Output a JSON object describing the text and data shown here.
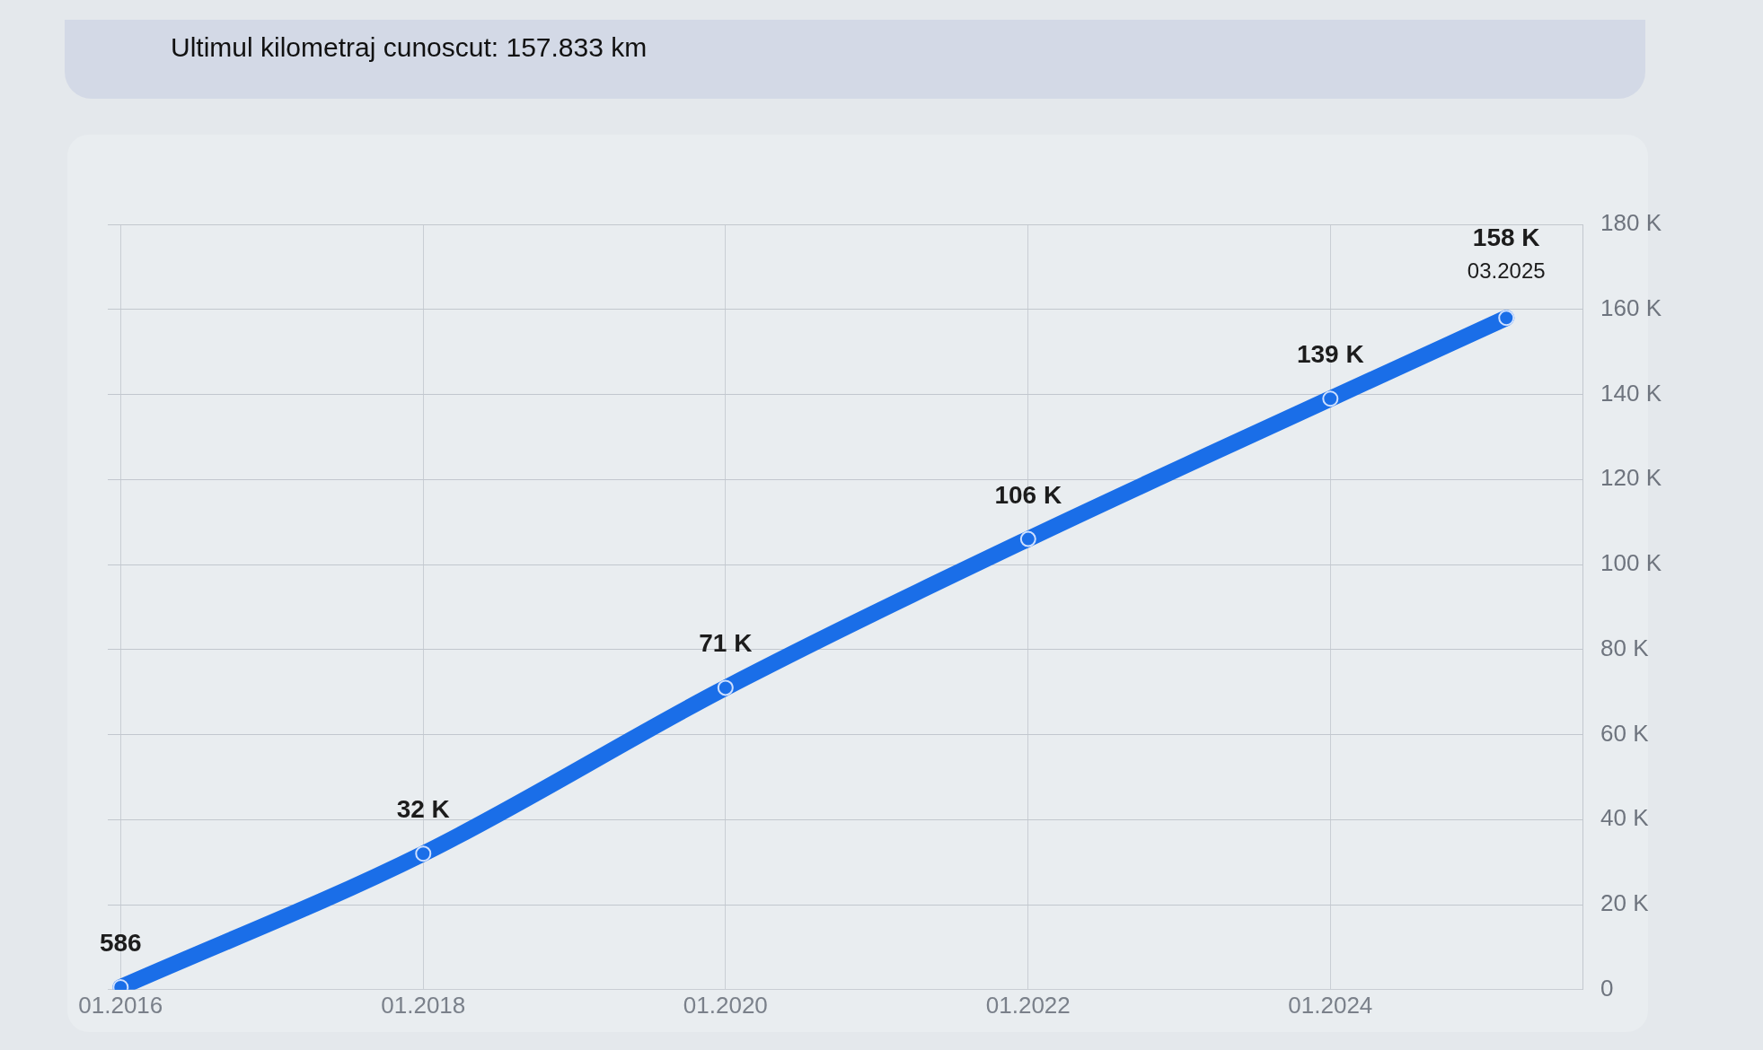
{
  "chart_data": {
    "type": "line",
    "title": "Ultimul kilometraj cunoscut: 157.833 km",
    "x": [
      "2016-01",
      "2018-01",
      "2020-01",
      "2022-01",
      "2024-01",
      "2025-03"
    ],
    "series": [
      {
        "color": "#1a6ee8",
        "values": [
          586,
          32000,
          71000,
          106000,
          139000,
          158000
        ],
        "value_labels": [
          "586",
          "32 K",
          "71 K",
          "106 K",
          "139 K",
          "158 K"
        ]
      }
    ],
    "xlim": [
      "2015-12",
      "2025-09"
    ],
    "xticks": [
      {
        "value": "2016-01",
        "label": "01.2016"
      },
      {
        "value": "2018-01",
        "label": "01.2018"
      },
      {
        "value": "2020-01",
        "label": "01.2020"
      },
      {
        "value": "2022-01",
        "label": "01.2022"
      },
      {
        "value": "2024-01",
        "label": "01.2024"
      }
    ],
    "ylim": [
      0,
      180000
    ],
    "yticks": [
      0,
      {
        "value": 20000,
        "label": "20 K"
      },
      {
        "value": 40000,
        "label": "40 K"
      },
      {
        "value": 60000,
        "label": "60 K"
      },
      {
        "value": 80000,
        "label": "80 K"
      },
      {
        "value": 100000,
        "label": "100 K"
      },
      {
        "value": 120000,
        "label": "120 K"
      },
      {
        "value": 140000,
        "label": "140 K"
      },
      {
        "value": 160000,
        "label": "160 K"
      },
      {
        "value": 180000,
        "label": "180 K"
      }
    ],
    "annotations": [
      {
        "text": "03.2025",
        "x": "2025-03",
        "y": 158000
      }
    ],
    "grid": true,
    "legend": false,
    "marker": "circle",
    "line_style": "solid"
  }
}
